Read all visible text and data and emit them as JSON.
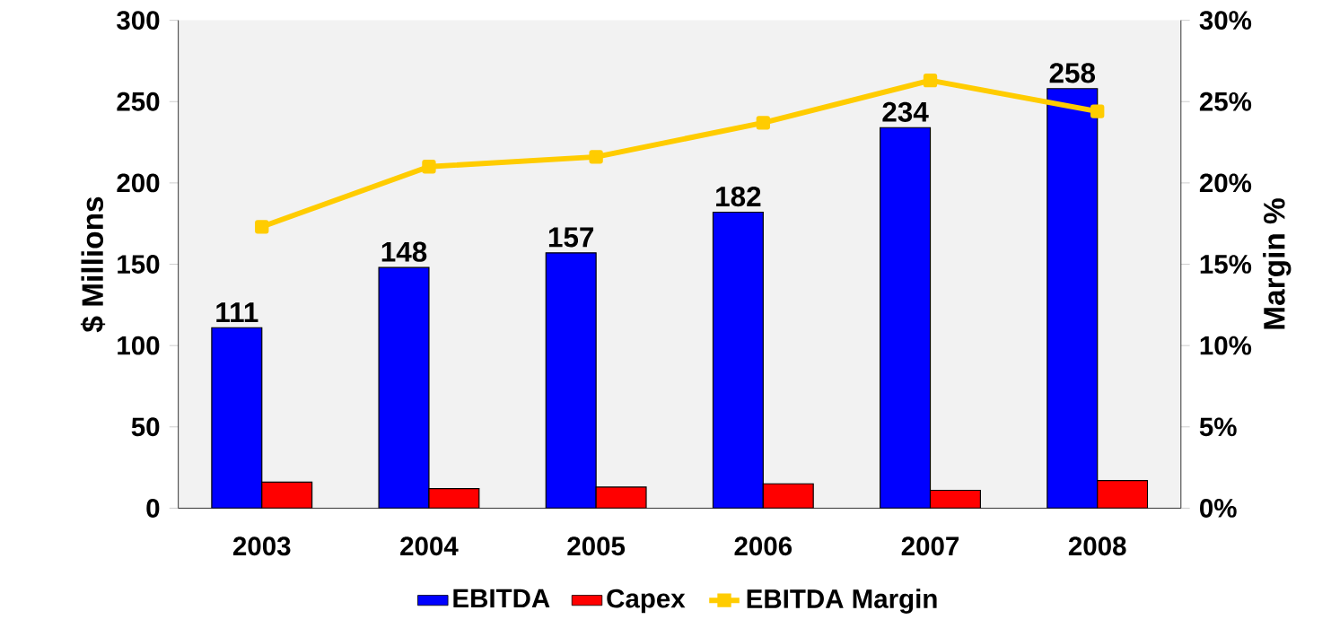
{
  "chart_data": {
    "type": "bar",
    "categories": [
      "2003",
      "2004",
      "2005",
      "2006",
      "2007",
      "2008"
    ],
    "ylabel": "$ Millions",
    "y2label": "Margin %",
    "ylim": [
      0,
      300
    ],
    "yticks": [
      0,
      50,
      100,
      150,
      200,
      250,
      300
    ],
    "y2lim": [
      0,
      30
    ],
    "y2ticks": [
      {
        "value": 0,
        "label": "0%"
      },
      {
        "value": 5,
        "label": "5%"
      },
      {
        "value": 10,
        "label": "10%"
      },
      {
        "value": 15,
        "label": "15%"
      },
      {
        "value": 20,
        "label": "20%"
      },
      {
        "value": 25,
        "label": "25%"
      },
      {
        "value": 30,
        "label": "30%"
      }
    ],
    "legend": "bottom",
    "grid": false,
    "series": [
      {
        "name": "EBITDA",
        "color": "#0000ff",
        "values": [
          111,
          148,
          157,
          182,
          234,
          258
        ],
        "value_labels": [
          "111",
          "148",
          "157",
          "182",
          "234",
          "258"
        ]
      },
      {
        "name": "Capex",
        "color": "#ff0000",
        "values": [
          16,
          12,
          13,
          15,
          11,
          17
        ]
      },
      {
        "name": "EBITDA Margin",
        "type": "line",
        "axis": "y2",
        "color": "#ffcc00",
        "marker": "square",
        "values": [
          17.3,
          21.0,
          21.6,
          23.7,
          26.3,
          24.4
        ]
      }
    ]
  }
}
